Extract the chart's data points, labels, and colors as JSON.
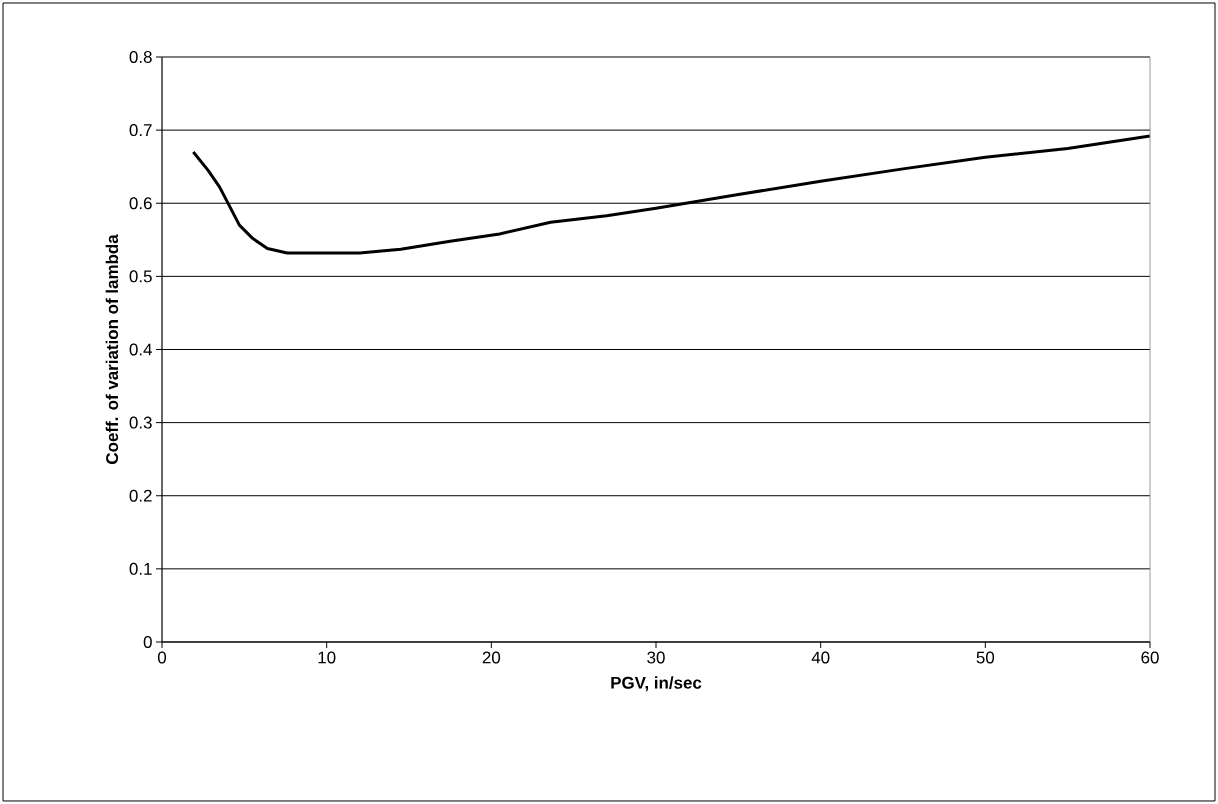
{
  "chart_data": {
    "type": "line",
    "xlabel": "PGV, in/sec",
    "ylabel": "Coeff. of variation of lambda",
    "x": [
      1.9,
      2.8,
      3.5,
      4.1,
      4.7,
      5.5,
      6.4,
      7.6,
      12.0,
      14.5,
      17.5,
      20.5,
      23.6,
      27,
      30,
      35,
      40,
      45,
      50,
      55,
      60
    ],
    "series": [
      {
        "color": "#000000",
        "values": [
          0.67,
          0.645,
          0.622,
          0.596,
          0.57,
          0.552,
          0.538,
          0.532,
          0.532,
          0.537,
          0.548,
          0.558,
          0.574,
          0.583,
          0.593,
          0.612,
          0.63,
          0.647,
          0.663,
          0.675,
          0.692
        ]
      }
    ],
    "xlim": [
      0,
      60
    ],
    "ylim": [
      0,
      0.8
    ],
    "xticks": [
      0,
      10,
      20,
      30,
      40,
      50,
      60
    ],
    "yticks": [
      0,
      0.1,
      0.2,
      0.3,
      0.4,
      0.5,
      0.6,
      0.7,
      0.8
    ],
    "grid": "y",
    "marker": "none",
    "line_style": "solid"
  }
}
